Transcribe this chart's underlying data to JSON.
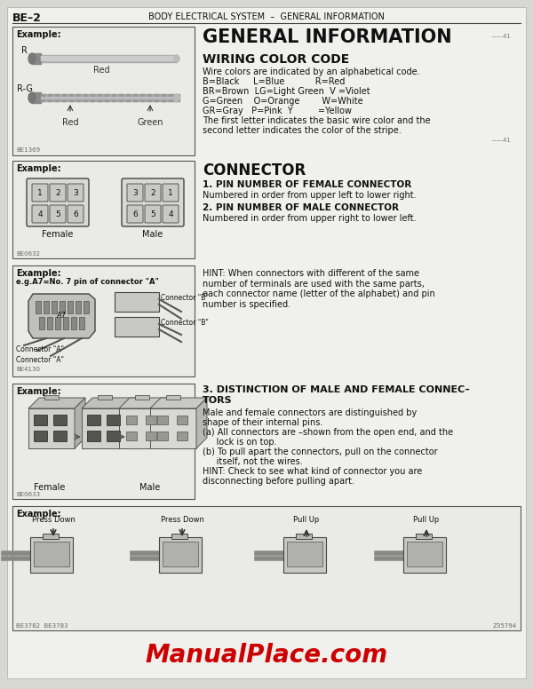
{
  "page_number": "BE–2",
  "header": "BODY ELECTRICAL SYSTEM  –  GENERAL INFORMATION",
  "title": "GENERAL INFORMATION",
  "section1_title": "WIRING COLOR CODE",
  "section1_body_lines": [
    "Wire colors are indicated by an alphabetical code.",
    "B=Black     L=Blue           R=Red",
    "BR=Brown  LG=Light Green  V =Violet",
    "G=Green    O=Orange        W=White",
    "GR=Gray   P=Pink  Y         =Yellow",
    "The first letter indicates the basic wire color and the",
    "second letter indicates the color of the stripe."
  ],
  "section2_title": "CONNECTOR",
  "section2_sub1": "1. PIN NUMBER OF FEMALE CONNECTOR",
  "section2_body1": "Numbered in order from upper left to lower right.",
  "section2_sub2": "2. PIN NUMBER OF MALE CONNECTOR",
  "section2_body2": "Numbered in order from upper right to lower left.",
  "section3_hint": "HINT: When connectors with different of the same\nnumber of terminals are used with the same parts,\neach connector name (letter of the alphabet) and pin\nnumber is specified.",
  "section4_title_line1": "3. DISTINCTION OF MALE AND FEMALE CONNEC–",
  "section4_title_line2": "TORS",
  "section4_body": [
    "Male and female connectors are distinguished by",
    "shape of their internal pins.",
    "(a) All connectors are –shown from the open end, and the",
    "     lock is on top.",
    "(b) To pull apart the connectors, pull on the connector",
    "     itself, not the wires.",
    "HINT: Check to see what kind of connector you are",
    "disconnecting before pulling apart."
  ],
  "footer": "ManualPlace.com",
  "bg_color": "#e8e8e4",
  "page_bg": "#d8d8d3",
  "box_bg": "#e0e0dc",
  "text_color": "#111111",
  "footer_color": "#cc0000",
  "male_nums": [
    3,
    2,
    1,
    6,
    5,
    4
  ],
  "female_nums": [
    1,
    2,
    3,
    4,
    5,
    6
  ]
}
